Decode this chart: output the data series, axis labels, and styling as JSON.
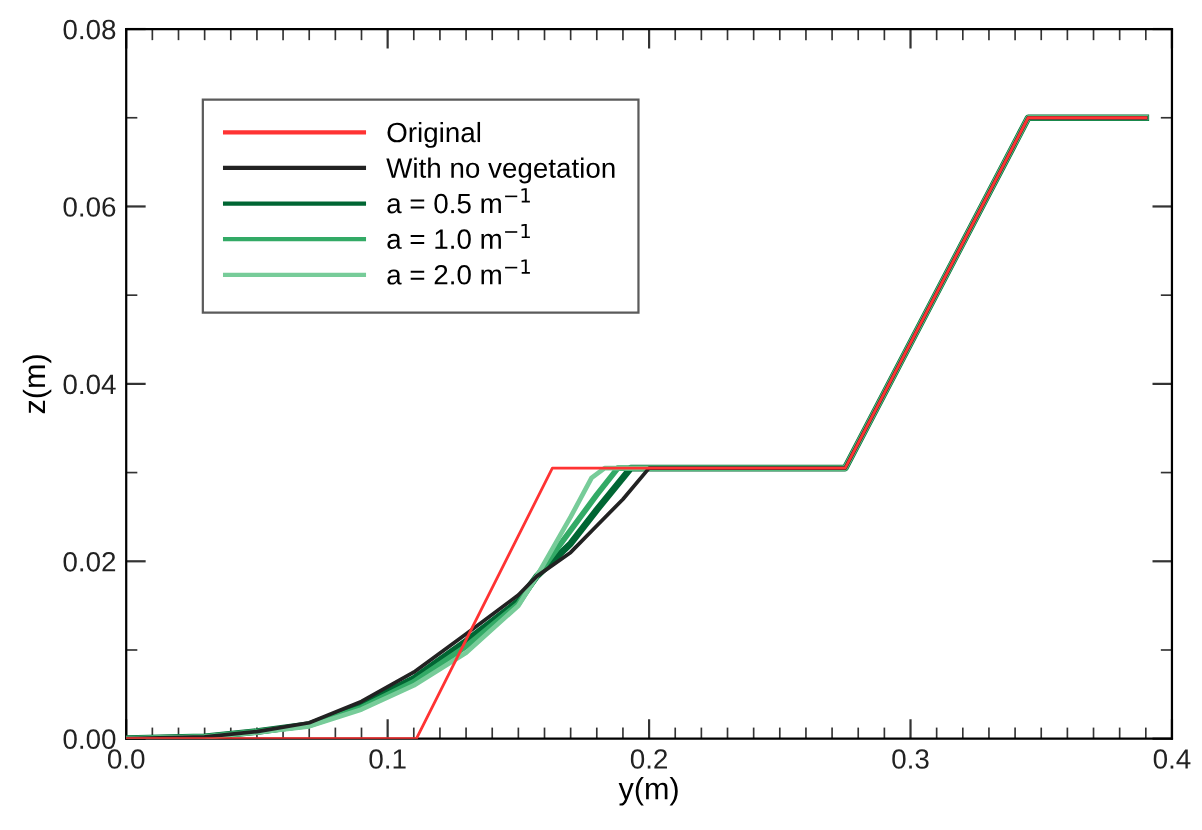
{
  "chart_data": {
    "type": "line",
    "xlabel": "y(m)",
    "ylabel": "z(m)",
    "xlim": [
      0,
      0.4
    ],
    "ylim": [
      0,
      0.08
    ],
    "xticks": [
      {
        "value": 0,
        "label": "0.0"
      },
      {
        "value": 0.01,
        "label": null
      },
      {
        "value": 0.02,
        "label": null
      },
      {
        "value": 0.03,
        "label": null
      },
      {
        "value": 0.04,
        "label": null
      },
      {
        "value": 0.05,
        "label": null
      },
      {
        "value": 0.06,
        "label": null
      },
      {
        "value": 0.07,
        "label": null
      },
      {
        "value": 0.08,
        "label": null
      },
      {
        "value": 0.09,
        "label": null
      },
      {
        "value": 0.1,
        "label": "0.1"
      },
      {
        "value": 0.11,
        "label": null
      },
      {
        "value": 0.12,
        "label": null
      },
      {
        "value": 0.13,
        "label": null
      },
      {
        "value": 0.14,
        "label": null
      },
      {
        "value": 0.15,
        "label": null
      },
      {
        "value": 0.16,
        "label": null
      },
      {
        "value": 0.17,
        "label": null
      },
      {
        "value": 0.18,
        "label": null
      },
      {
        "value": 0.19,
        "label": null
      },
      {
        "value": 0.2,
        "label": "0.2"
      },
      {
        "value": 0.21,
        "label": null
      },
      {
        "value": 0.22,
        "label": null
      },
      {
        "value": 0.23,
        "label": null
      },
      {
        "value": 0.24,
        "label": null
      },
      {
        "value": 0.25,
        "label": null
      },
      {
        "value": 0.26,
        "label": null
      },
      {
        "value": 0.27,
        "label": null
      },
      {
        "value": 0.28,
        "label": null
      },
      {
        "value": 0.29,
        "label": null
      },
      {
        "value": 0.3,
        "label": "0.3"
      },
      {
        "value": 0.31,
        "label": null
      },
      {
        "value": 0.32,
        "label": null
      },
      {
        "value": 0.33,
        "label": null
      },
      {
        "value": 0.34,
        "label": null
      },
      {
        "value": 0.35,
        "label": null
      },
      {
        "value": 0.36,
        "label": null
      },
      {
        "value": 0.37,
        "label": null
      },
      {
        "value": 0.38,
        "label": null
      },
      {
        "value": 0.39,
        "label": null
      },
      {
        "value": 0.4,
        "label": "0.4"
      }
    ],
    "yticks": [
      {
        "value": 0,
        "label": "0.00"
      },
      {
        "value": 0.01,
        "label": null
      },
      {
        "value": 0.02,
        "label": "0.02"
      },
      {
        "value": 0.03,
        "label": null
      },
      {
        "value": 0.04,
        "label": "0.04"
      },
      {
        "value": 0.05,
        "label": null
      },
      {
        "value": 0.06,
        "label": "0.06"
      },
      {
        "value": 0.07,
        "label": null
      },
      {
        "value": 0.08,
        "label": "0.08"
      }
    ],
    "grid": false,
    "legend": "top left",
    "marker": "none",
    "line_style": "solid",
    "series": [
      {
        "name": "Original",
        "color": "#ff3333",
        "x": [
          0,
          0.111,
          0.163,
          0.275,
          0.345,
          0.39
        ],
        "values": [
          0,
          0,
          0.0305,
          0.0305,
          0.07,
          0.07
        ]
      },
      {
        "name": "With no vegetation",
        "color": "#222222",
        "x": [
          0,
          0.03,
          0.05,
          0.07,
          0.09,
          0.11,
          0.13,
          0.15,
          0.157,
          0.17,
          0.18,
          0.19,
          0.2,
          0.275,
          0.345,
          0.39
        ],
        "values": [
          0,
          0.0002,
          0.0008,
          0.0018,
          0.0042,
          0.0075,
          0.0118,
          0.0162,
          0.0183,
          0.021,
          0.024,
          0.027,
          0.0305,
          0.0305,
          0.07,
          0.07
        ]
      },
      {
        "name": "a = 0.5 m$^{−1}$",
        "color": "#006633",
        "x": [
          0,
          0.03,
          0.05,
          0.07,
          0.09,
          0.11,
          0.13,
          0.15,
          0.157,
          0.17,
          0.18,
          0.193,
          0.275,
          0.345,
          0.39
        ],
        "values": [
          0,
          0.0002,
          0.0008,
          0.0016,
          0.0038,
          0.0068,
          0.011,
          0.0155,
          0.0183,
          0.022,
          0.0258,
          0.0305,
          0.0305,
          0.07,
          0.07
        ]
      },
      {
        "name": "a = 1.0 m$^{−1}$",
        "color": "#33aa66",
        "x": [
          0,
          0.03,
          0.05,
          0.07,
          0.09,
          0.11,
          0.13,
          0.15,
          0.157,
          0.17,
          0.18,
          0.188,
          0.275,
          0.345,
          0.39
        ],
        "values": [
          0,
          0.0002,
          0.0008,
          0.0015,
          0.0035,
          0.0064,
          0.0104,
          0.0152,
          0.0183,
          0.0235,
          0.0275,
          0.0305,
          0.0305,
          0.07,
          0.07
        ]
      },
      {
        "name": "a = 2.0 m$^{−1}$",
        "color": "#77cc99",
        "x": [
          0,
          0.03,
          0.05,
          0.07,
          0.09,
          0.11,
          0.13,
          0.15,
          0.157,
          0.17,
          0.178,
          0.183,
          0.275,
          0.345,
          0.39
        ],
        "values": [
          0,
          0.0002,
          0.0007,
          0.0014,
          0.0033,
          0.006,
          0.0097,
          0.015,
          0.0183,
          0.025,
          0.0294,
          0.0305,
          0.0305,
          0.07,
          0.07
        ]
      }
    ]
  }
}
